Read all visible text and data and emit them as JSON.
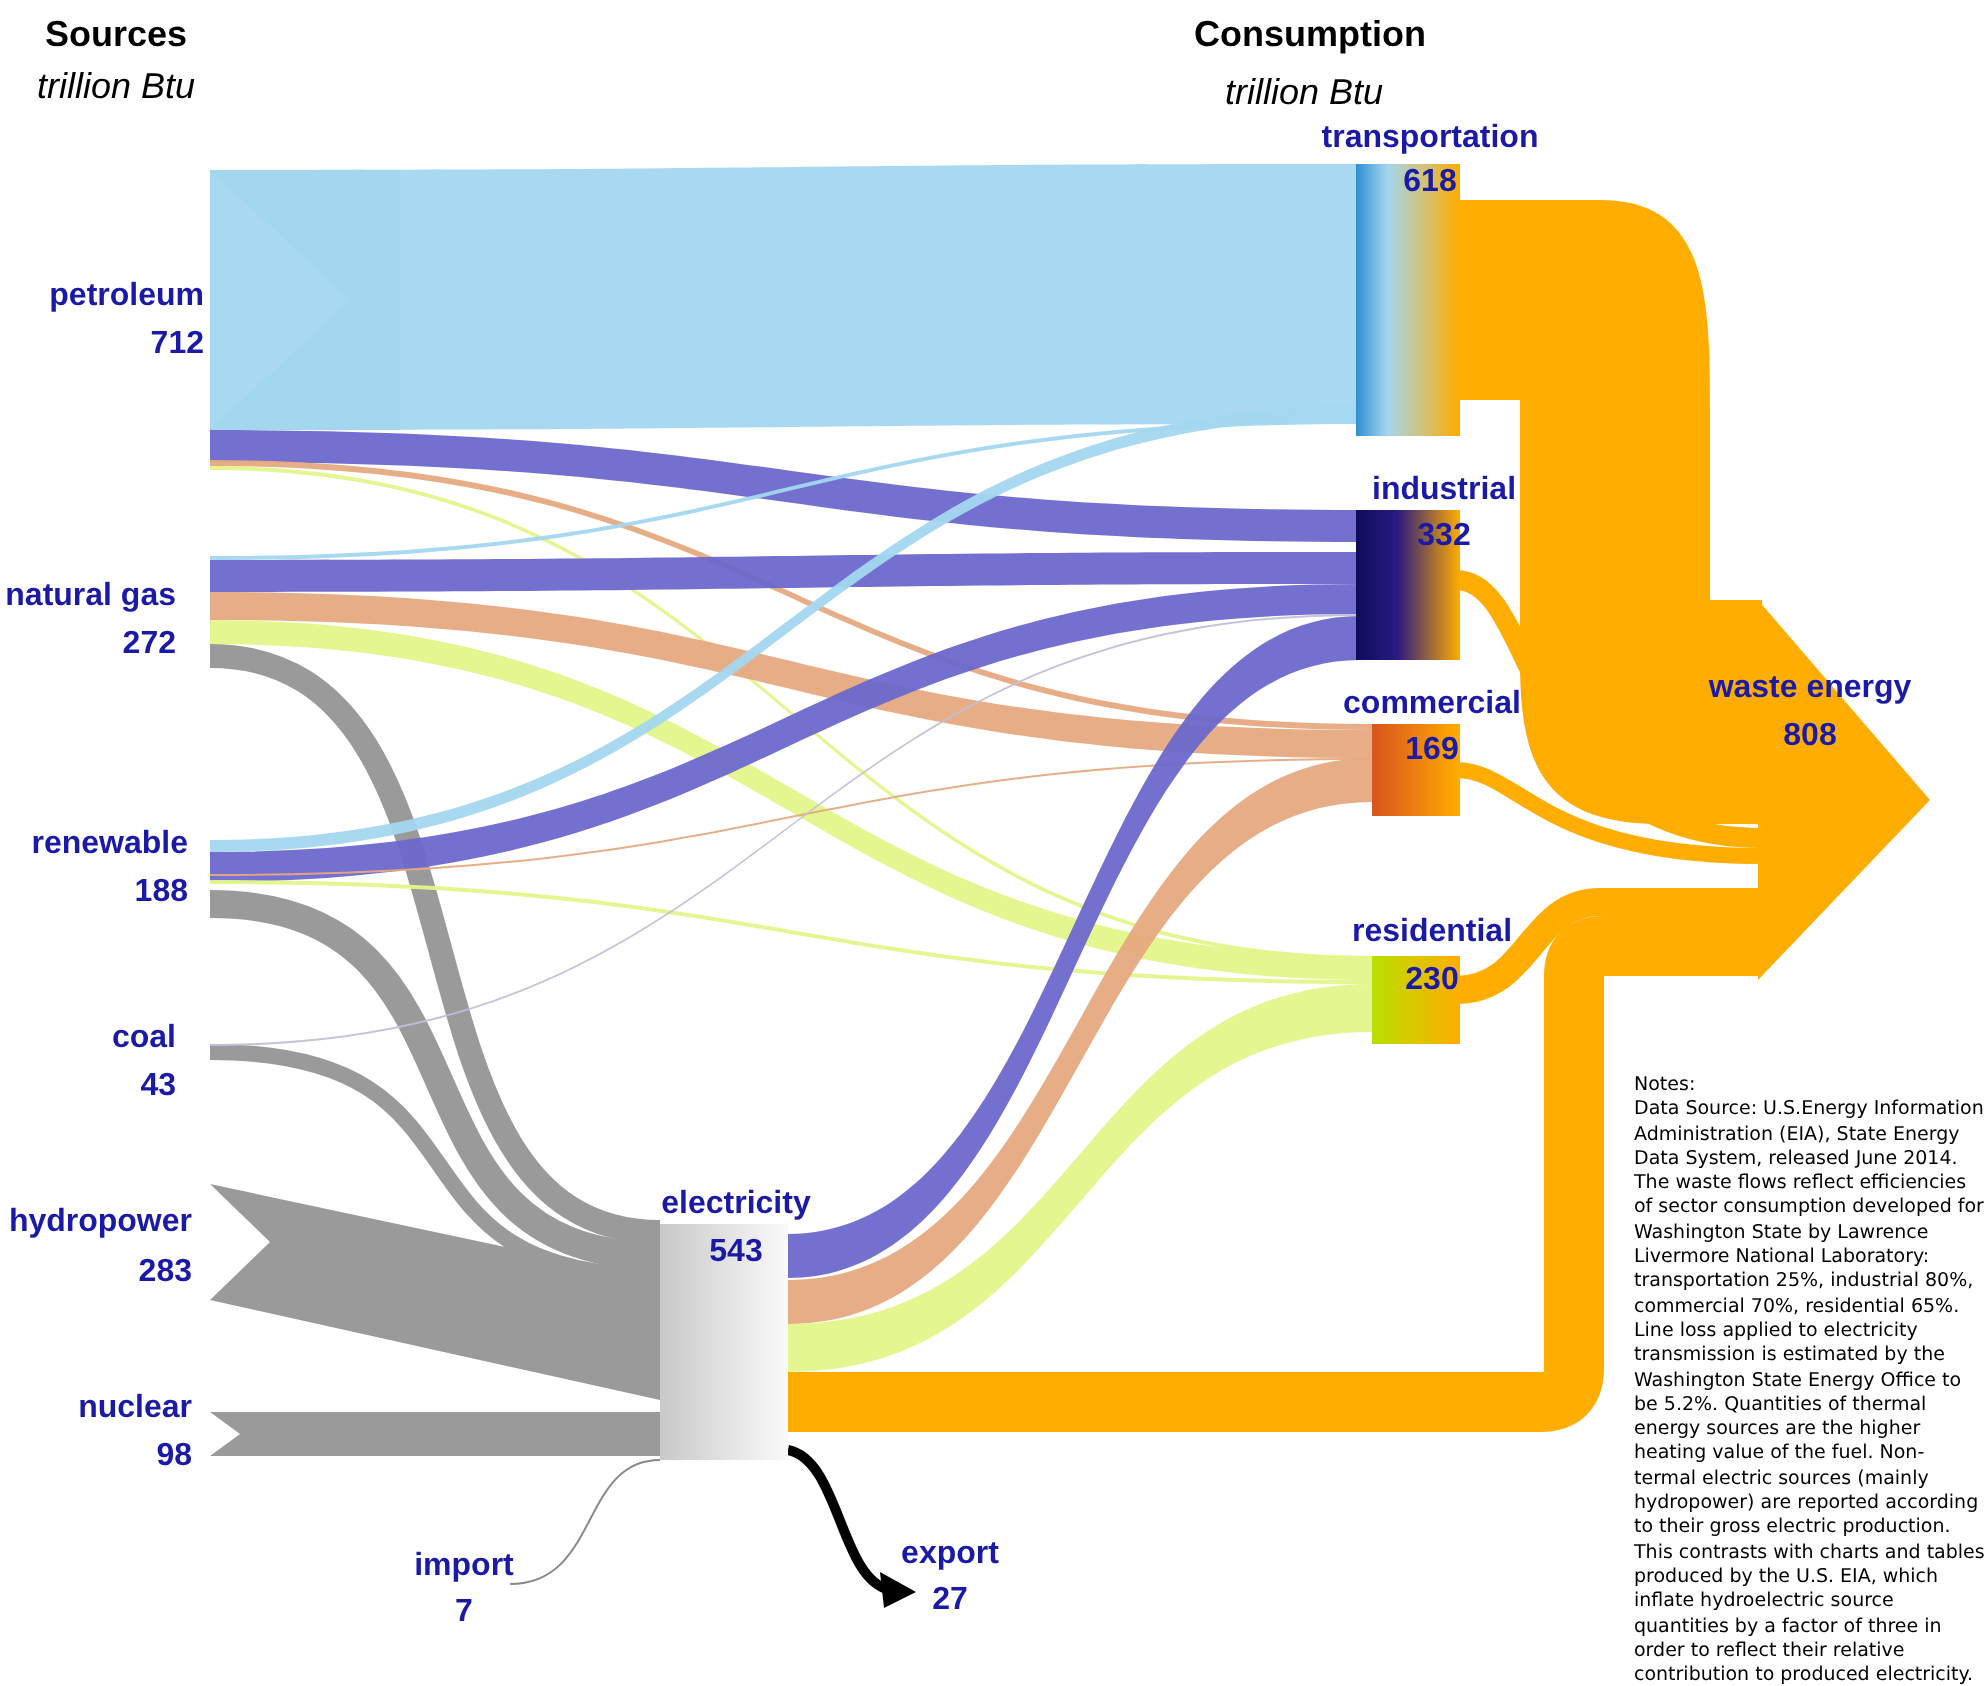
{
  "chart_data": {
    "type": "other",
    "categories": [
      "petroleum",
      "natural gas",
      "renewable",
      "coal",
      "hydropower",
      "nuclear",
      "import",
      "electricity",
      "export",
      "transportation",
      "industrial",
      "commercial",
      "residential",
      "waste energy"
    ],
    "values": [
      712,
      272,
      188,
      43,
      283,
      98,
      7,
      543,
      27,
      618,
      332,
      169,
      230,
      808
    ],
    "data_labels": true,
    "annotations": [
      "Sources",
      "trillion Btu",
      "Consumption",
      "trillion Btu",
      "Notes:\nData Source: U.S.Energy Information Administration (EIA), State Energy Data System, released June 2014.\nThe waste flows reflect efficiencies of sector consumption developed for Washington State by Lawrence Livermore National Laboratory: transportation 25%, industrial 80%, commercial 70%, residential 65%. Line loss applied to electricity transmission is estimated by the Washington State Energy Office to be 5.2%. Quantities of thermal energy sources are the higher heating value of the fuel. Non-termal electric sources (mainly hydropower) are reported according to their gross electric production. This contrasts with charts and tables produced by the U.S. EIA, which inflate hydroelectric source quantities by a factor of three in order to reflect their relative contribution to produced electricity."
    ]
  }
}
